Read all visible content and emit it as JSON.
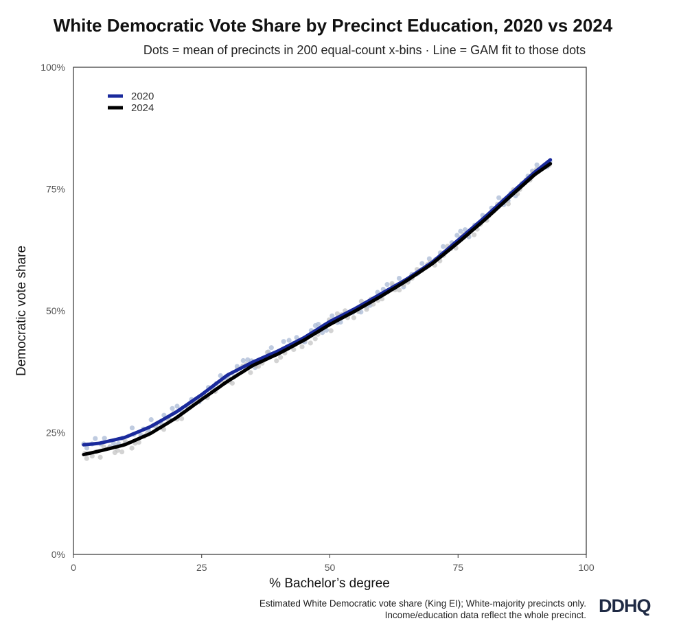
{
  "chart_data": {
    "type": "scatter",
    "title": "White Democratic Vote Share by Precinct Education, 2020 vs 2024",
    "subtitle": "Dots = mean of precincts in 200 equal-count x-bins · Line = GAM fit to those dots",
    "xlabel": "% Bachelor’s degree",
    "ylabel": "Democratic vote share",
    "xlim": [
      0,
      100
    ],
    "ylim": [
      0,
      1
    ],
    "x_ticks": [
      0,
      25,
      50,
      75,
      100
    ],
    "x_tick_labels": [
      "0",
      "25",
      "50",
      "75",
      "100"
    ],
    "y_ticks": [
      0,
      0.25,
      0.5,
      0.75,
      1
    ],
    "y_tick_labels": [
      "0%",
      "25%",
      "50%",
      "75%",
      "100%"
    ],
    "grid": false,
    "legend_position": "top-left",
    "series": [
      {
        "name": "2020",
        "color": "#1a2a9c",
        "dot_color": "#a9bad6",
        "fit_x": [
          2,
          5,
          10,
          15,
          20,
          25,
          30,
          35,
          40,
          45,
          50,
          55,
          60,
          65,
          70,
          75,
          80,
          85,
          90,
          93
        ],
        "fit_y": [
          0.225,
          0.228,
          0.24,
          0.262,
          0.292,
          0.328,
          0.368,
          0.395,
          0.418,
          0.445,
          0.478,
          0.505,
          0.535,
          0.565,
          0.6,
          0.645,
          0.69,
          0.738,
          0.785,
          0.81
        ]
      },
      {
        "name": "2024",
        "color": "#000000",
        "dot_color": "#c4c4c4",
        "fit_x": [
          2,
          5,
          10,
          15,
          20,
          25,
          30,
          35,
          40,
          45,
          50,
          55,
          60,
          65,
          70,
          75,
          80,
          85,
          90,
          93
        ],
        "fit_y": [
          0.205,
          0.212,
          0.225,
          0.248,
          0.28,
          0.318,
          0.355,
          0.388,
          0.412,
          0.44,
          0.472,
          0.5,
          0.53,
          0.562,
          0.597,
          0.64,
          0.685,
          0.733,
          0.78,
          0.802
        ]
      }
    ]
  },
  "footnote": {
    "line1": "Estimated White Democratic vote share (King EI); White-majority precincts only.",
    "line2": "Income/education data reflect the whole precinct."
  },
  "logo": {
    "text": "DDHQ"
  }
}
